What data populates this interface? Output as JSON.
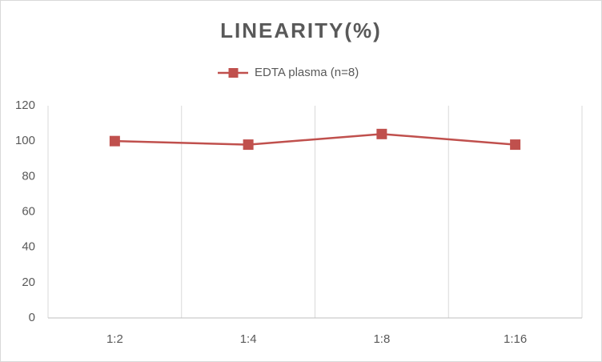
{
  "chart_data": {
    "type": "line",
    "title": "LINEARITY(%)",
    "categories": [
      "1:2",
      "1:4",
      "1:8",
      "1:16"
    ],
    "series": [
      {
        "name": "EDTA plasma (n=8)",
        "color": "#c0504d",
        "values": [
          100,
          98,
          104,
          98
        ]
      }
    ],
    "ylim": [
      0,
      120
    ],
    "yticks": [
      0,
      20,
      40,
      60,
      80,
      100,
      120
    ],
    "grid": true,
    "legend": "top"
  }
}
